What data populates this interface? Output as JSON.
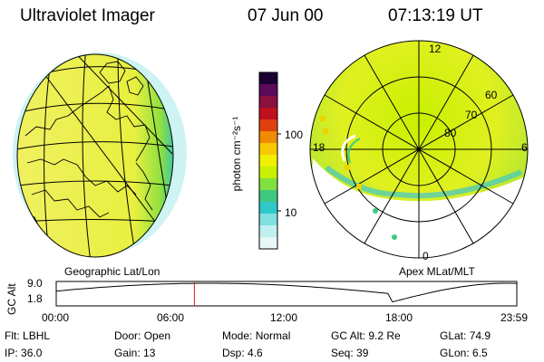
{
  "header": {
    "title": "Ultraviolet Imager",
    "date": "07 Jun 00",
    "time": "07:13:19 UT"
  },
  "colorbar": {
    "unit_label": "photon cm⁻²s⁻¹",
    "tick_100": "100",
    "tick_10": "10",
    "colors": [
      "#1a0033",
      "#5a0a5a",
      "#8a1040",
      "#c01020",
      "#e04010",
      "#f08a00",
      "#f8c800",
      "#f0f000",
      "#c8f000",
      "#80e040",
      "#40c880",
      "#30c8c8",
      "#80e0e0",
      "#c0f0f0",
      "#e8f8f8"
    ]
  },
  "left_panel": {
    "label": "Geographic Lat/Lon",
    "base_color": "#f0f050",
    "edge_color": "#40c880"
  },
  "right_panel": {
    "label": "Apex  MLat/MLT",
    "ring_labels": [
      "80",
      "70",
      "60"
    ],
    "hour_labels": {
      "top": "12",
      "left": "18",
      "right": "6",
      "bottom": "0"
    }
  },
  "altitude_plot": {
    "axis_label": "GC Alt",
    "y_ticks": [
      "9.0",
      "1.8"
    ],
    "x_ticks": [
      "00:00",
      "06:00",
      "12:00",
      "18:00",
      "23:59"
    ],
    "marker_fraction": 0.3,
    "marker_color": "#d02020"
  },
  "info": {
    "row1": [
      {
        "label": "Flt:",
        "value": "LBHL"
      },
      {
        "label": "Door:",
        "value": "Open"
      },
      {
        "label": "Mode:",
        "value": "Normal"
      },
      {
        "label": "GC Alt:",
        "value": "9.2 Re"
      },
      {
        "label": "GLat:",
        "value": "74.9"
      }
    ],
    "row2": [
      {
        "label": "IP:",
        "value": "36.0"
      },
      {
        "label": "Gain:",
        "value": "13"
      },
      {
        "label": "Dsp:",
        "value": "4.6"
      },
      {
        "label": "Seq:",
        "value": "39"
      },
      {
        "label": "GLon:",
        "value": "6.5"
      }
    ]
  }
}
